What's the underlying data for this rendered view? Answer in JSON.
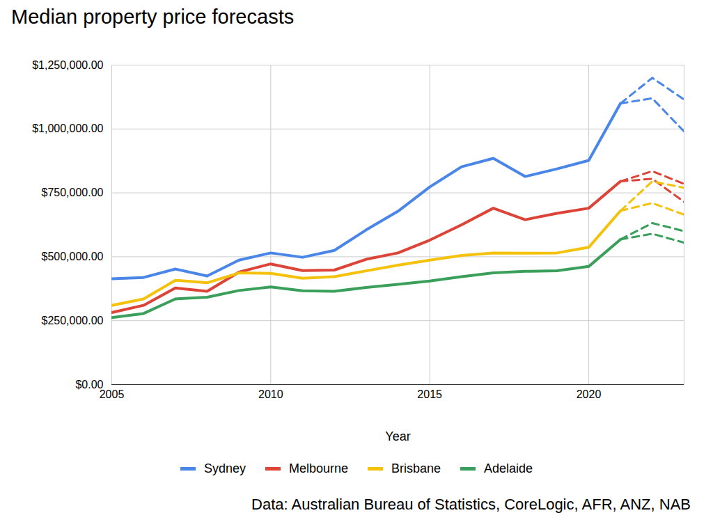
{
  "chart_data": {
    "type": "line",
    "title": "Median property price forecasts",
    "x_label": "Year",
    "caption": "Data: Australian Bureau of Statistics, CoreLogic, AFR, ANZ, NAB",
    "x": [
      2005,
      2006,
      2007,
      2008,
      2009,
      2010,
      2011,
      2012,
      2013,
      2014,
      2015,
      2016,
      2017,
      2018,
      2019,
      2020,
      2021,
      2022,
      2023
    ],
    "xlim": [
      2005,
      2023
    ],
    "xticks": [
      2005,
      2010,
      2015,
      2020
    ],
    "ylim": [
      0,
      1250000
    ],
    "yticks": [
      {
        "value": 0,
        "label": "$0.00"
      },
      {
        "value": 250000,
        "label": "$250,000.00"
      },
      {
        "value": 500000,
        "label": "$500,000.00"
      },
      {
        "value": 750000,
        "label": "$750,000.00"
      },
      {
        "value": 1000000,
        "label": "$1,000,000.00"
      },
      {
        "value": 1250000,
        "label": "$1,250,000.00"
      }
    ],
    "grid": true,
    "legend": "bottom",
    "series": [
      {
        "name": "Sydney",
        "color": "#4a86e8",
        "line_style": "solid",
        "values": [
          414000,
          419000,
          452000,
          425000,
          487000,
          515000,
          498000,
          525000,
          605000,
          678000,
          773000,
          852000,
          885000,
          814000,
          844000,
          877000,
          1100000,
          null,
          null
        ],
        "forecast": {
          "line_style": "dashed",
          "upper": [
            null,
            null,
            null,
            null,
            null,
            null,
            null,
            null,
            null,
            null,
            null,
            null,
            null,
            null,
            null,
            null,
            1100000,
            1200000,
            1115000
          ],
          "lower": [
            null,
            null,
            null,
            null,
            null,
            null,
            null,
            null,
            null,
            null,
            null,
            null,
            null,
            null,
            null,
            null,
            1100000,
            1120000,
            990000
          ]
        }
      },
      {
        "name": "Melbourne",
        "color": "#db4437",
        "line_style": "solid",
        "values": [
          282000,
          310000,
          378000,
          365000,
          440000,
          472000,
          446000,
          448000,
          490000,
          515000,
          565000,
          625000,
          690000,
          645000,
          670000,
          690000,
          795000,
          null,
          null
        ],
        "forecast": {
          "line_style": "dashed",
          "upper": [
            null,
            null,
            null,
            null,
            null,
            null,
            null,
            null,
            null,
            null,
            null,
            null,
            null,
            null,
            null,
            null,
            795000,
            835000,
            785000
          ],
          "lower": [
            null,
            null,
            null,
            null,
            null,
            null,
            null,
            null,
            null,
            null,
            null,
            null,
            null,
            null,
            null,
            null,
            795000,
            805000,
            715000
          ]
        }
      },
      {
        "name": "Brisbane",
        "color": "#f4c20d",
        "line_style": "solid",
        "values": [
          310000,
          335000,
          408000,
          398000,
          437000,
          435000,
          416000,
          422000,
          445000,
          467000,
          487000,
          505000,
          515000,
          514000,
          515000,
          537000,
          680000,
          null,
          null
        ],
        "forecast": {
          "line_style": "dashed",
          "upper": [
            null,
            null,
            null,
            null,
            null,
            null,
            null,
            null,
            null,
            null,
            null,
            null,
            null,
            null,
            null,
            null,
            680000,
            795000,
            770000
          ],
          "lower": [
            null,
            null,
            null,
            null,
            null,
            null,
            null,
            null,
            null,
            null,
            null,
            null,
            null,
            null,
            null,
            null,
            680000,
            710000,
            665000
          ]
        }
      },
      {
        "name": "Adelaide",
        "color": "#3a9f5a",
        "line_style": "solid",
        "values": [
          262000,
          278000,
          335000,
          342000,
          368000,
          382000,
          367000,
          365000,
          380000,
          392000,
          405000,
          422000,
          437000,
          443000,
          445000,
          462000,
          568000,
          null,
          null
        ],
        "forecast": {
          "line_style": "dashed",
          "upper": [
            null,
            null,
            null,
            null,
            null,
            null,
            null,
            null,
            null,
            null,
            null,
            null,
            null,
            null,
            null,
            null,
            568000,
            632000,
            600000
          ],
          "lower": [
            null,
            null,
            null,
            null,
            null,
            null,
            null,
            null,
            null,
            null,
            null,
            null,
            null,
            null,
            null,
            null,
            568000,
            590000,
            555000
          ]
        }
      }
    ]
  }
}
